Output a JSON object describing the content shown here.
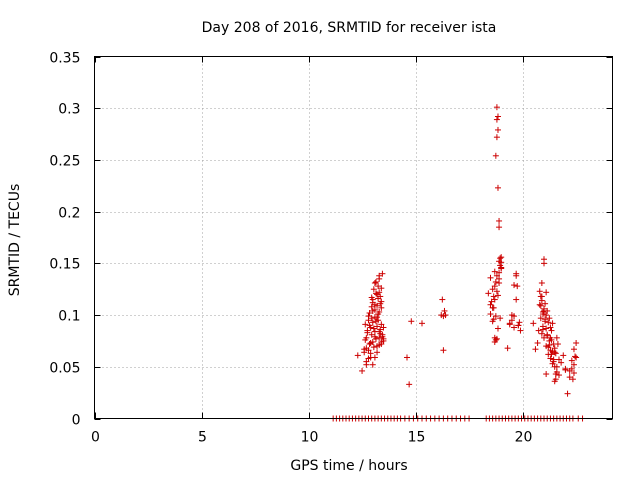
{
  "chart_data": {
    "type": "scatter",
    "title": "Day 208 of 2016, SRMTID for receiver ista",
    "xlabel": "GPS time / hours",
    "ylabel": "SRMTID / TECUs",
    "xlim": [
      0,
      24.2
    ],
    "ylim": [
      0,
      0.35
    ],
    "xticks": [
      0,
      5,
      10,
      15,
      20
    ],
    "xtick_labels": [
      "0",
      "5",
      "10",
      "15",
      "20"
    ],
    "yticks": [
      0,
      0.05,
      0.1,
      0.15,
      0.2,
      0.25,
      0.3,
      0.35
    ],
    "ytick_labels": [
      "0",
      "0.05",
      "0.1",
      "0.15",
      "0.2",
      "0.25",
      "0.3",
      "0.35"
    ],
    "grid": true,
    "legend": "none",
    "marker": "plus",
    "color": "#cc0000",
    "series": [
      {
        "x": [
          12.3,
          12.5,
          12.6,
          12.65,
          12.7,
          12.7,
          12.75,
          12.8,
          12.8,
          12.85,
          12.85,
          12.9,
          12.9,
          12.95,
          12.95,
          13.0,
          13.0,
          13.0,
          13.05,
          13.05,
          13.1,
          13.1,
          13.1,
          13.15,
          13.15,
          13.2,
          13.2,
          13.2,
          13.25,
          13.25,
          13.3,
          13.3,
          13.3,
          13.35,
          13.35,
          13.4,
          13.4,
          13.4,
          13.45,
          13.45,
          13.5,
          13.5,
          12.6,
          12.7,
          12.8,
          12.9,
          13.0,
          13.1,
          13.2,
          13.3,
          13.4,
          13.0,
          13.1,
          13.2,
          13.25,
          13.3,
          13.35,
          13.4,
          12.65,
          12.75,
          12.85,
          12.95,
          13.05,
          13.15,
          13.25,
          13.35,
          13.45,
          12.7,
          12.9,
          13.1,
          13.3,
          13.5,
          12.8,
          13.0,
          13.2,
          13.4,
          13.1,
          13.3,
          12.95,
          13.15,
          14.6,
          14.7,
          14.8,
          15.3,
          16.2,
          16.25,
          16.3,
          16.35,
          16.4,
          16.3,
          18.4,
          18.5,
          18.5,
          18.55,
          18.6,
          18.6,
          18.65,
          18.65,
          18.7,
          18.7,
          18.7,
          18.75,
          18.75,
          18.8,
          18.8,
          18.8,
          18.85,
          18.85,
          18.85,
          18.9,
          18.9,
          18.9,
          18.95,
          18.95,
          19.0,
          19.0,
          19.0,
          18.7,
          18.75,
          18.8,
          18.85,
          18.8,
          18.85,
          18.9,
          18.75,
          18.8,
          18.9,
          18.95,
          18.6,
          18.7,
          18.5,
          18.65,
          18.9,
          19.0,
          19.3,
          19.4,
          19.5,
          19.6,
          19.6,
          19.7,
          19.7,
          19.75,
          19.8,
          19.85,
          19.9,
          19.6,
          19.8,
          19.5,
          19.7,
          19.4,
          20.5,
          20.6,
          20.7,
          20.75,
          20.8,
          20.8,
          20.85,
          20.85,
          20.9,
          20.9,
          20.95,
          20.95,
          21.0,
          21.0,
          21.0,
          21.05,
          21.05,
          21.1,
          21.1,
          21.1,
          21.15,
          21.15,
          21.2,
          21.2,
          21.25,
          21.25,
          21.3,
          21.3,
          21.35,
          21.35,
          21.4,
          21.4,
          21.45,
          21.45,
          21.5,
          21.5,
          21.55,
          21.55,
          21.6,
          21.6,
          21.65,
          21.7,
          21.8,
          21.9,
          22.0,
          22.1,
          22.2,
          22.3,
          22.35,
          22.4,
          22.45,
          22.5,
          22.3,
          22.4,
          22.5,
          20.9,
          21.0,
          21.1,
          20.95,
          21.05,
          21.15,
          21.25,
          21.35,
          21.45,
          21.55,
          21.2,
          21.3,
          21.4,
          21.5,
          21.6,
          21.1,
          21.3,
          21.5,
          21.7,
          22.0,
          22.2,
          22.4,
          20.85,
          20.9,
          20.95,
          21.0,
          11.15,
          11.3,
          11.45,
          11.6,
          11.75,
          11.9,
          12.05,
          12.2,
          12.35,
          12.5,
          12.65,
          12.8,
          12.95,
          13.1,
          13.25,
          13.4,
          13.55,
          13.7,
          13.85,
          14.0,
          14.15,
          14.3,
          14.5,
          14.7,
          14.9,
          15.1,
          15.3,
          15.5,
          15.7,
          15.9,
          16.1,
          16.3,
          16.5,
          16.7,
          16.9,
          17.1,
          17.3,
          17.5,
          18.3,
          18.45,
          18.6,
          18.75,
          18.9,
          19.05,
          19.2,
          19.35,
          19.5,
          19.65,
          19.8,
          19.95,
          20.1,
          20.25,
          20.4,
          20.55,
          20.7,
          20.85,
          21.0,
          21.15,
          21.3,
          21.45,
          21.6,
          21.75,
          21.9,
          22.05,
          22.2,
          22.35,
          22.6,
          22.8
        ],
        "y": [
          0.061,
          0.046,
          0.064,
          0.091,
          0.078,
          0.055,
          0.085,
          0.095,
          0.066,
          0.072,
          0.102,
          0.088,
          0.059,
          0.108,
          0.081,
          0.074,
          0.115,
          0.093,
          0.069,
          0.125,
          0.084,
          0.098,
          0.11,
          0.077,
          0.132,
          0.089,
          0.12,
          0.07,
          0.128,
          0.095,
          0.078,
          0.103,
          0.138,
          0.082,
          0.118,
          0.072,
          0.126,
          0.091,
          0.079,
          0.14,
          0.075,
          0.088,
          0.067,
          0.052,
          0.058,
          0.063,
          0.052,
          0.059,
          0.064,
          0.071,
          0.074,
          0.112,
          0.105,
          0.098,
          0.116,
          0.122,
          0.111,
          0.107,
          0.076,
          0.083,
          0.09,
          0.097,
          0.087,
          0.094,
          0.101,
          0.086,
          0.081,
          0.068,
          0.073,
          0.079,
          0.084,
          0.077,
          0.099,
          0.104,
          0.109,
          0.113,
          0.131,
          0.135,
          0.117,
          0.121,
          0.059,
          0.033,
          0.094,
          0.092,
          0.1,
          0.115,
          0.099,
          0.104,
          0.1,
          0.066,
          0.121,
          0.136,
          0.101,
          0.113,
          0.094,
          0.125,
          0.107,
          0.118,
          0.142,
          0.128,
          0.074,
          0.099,
          0.254,
          0.301,
          0.289,
          0.272,
          0.292,
          0.279,
          0.223,
          0.191,
          0.185,
          0.141,
          0.155,
          0.148,
          0.151,
          0.146,
          0.156,
          0.078,
          0.076,
          0.077,
          0.087,
          0.123,
          0.119,
          0.131,
          0.132,
          0.138,
          0.135,
          0.097,
          0.107,
          0.115,
          0.11,
          0.096,
          0.152,
          0.145,
          0.068,
          0.092,
          0.095,
          0.088,
          0.129,
          0.14,
          0.138,
          0.128,
          0.09,
          0.093,
          0.085,
          0.099,
          0.09,
          0.1,
          0.115,
          0.091,
          0.092,
          0.067,
          0.073,
          0.085,
          0.11,
          0.123,
          0.097,
          0.118,
          0.082,
          0.131,
          0.101,
          0.089,
          0.15,
          0.154,
          0.078,
          0.111,
          0.094,
          0.087,
          0.122,
          0.07,
          0.104,
          0.081,
          0.093,
          0.062,
          0.097,
          0.071,
          0.088,
          0.058,
          0.085,
          0.076,
          0.065,
          0.092,
          0.055,
          0.072,
          0.05,
          0.068,
          0.063,
          0.038,
          0.078,
          0.045,
          0.072,
          0.042,
          0.054,
          0.061,
          0.048,
          0.024,
          0.04,
          0.056,
          0.038,
          0.067,
          0.06,
          0.073,
          0.048,
          0.052,
          0.059,
          0.118,
          0.104,
          0.1,
          0.086,
          0.096,
          0.08,
          0.075,
          0.062,
          0.057,
          0.043,
          0.069,
          0.066,
          0.053,
          0.036,
          0.05,
          0.043,
          0.078,
          0.064,
          0.057,
          0.047,
          0.046,
          0.044,
          0.109,
          0.114,
          0.103,
          0.106,
          0,
          0,
          0,
          0,
          0,
          0,
          0,
          0,
          0,
          0,
          0,
          0,
          0,
          0,
          0,
          0,
          0,
          0,
          0,
          0,
          0,
          0,
          0,
          0,
          0,
          0,
          0,
          0,
          0,
          0,
          0,
          0,
          0,
          0,
          0,
          0,
          0,
          0,
          0,
          0,
          0,
          0,
          0,
          0,
          0,
          0,
          0,
          0,
          0,
          0,
          0,
          0,
          0,
          0,
          0,
          0,
          0,
          0,
          0,
          0,
          0,
          0,
          0,
          0,
          0,
          0,
          0,
          0
        ]
      }
    ]
  }
}
